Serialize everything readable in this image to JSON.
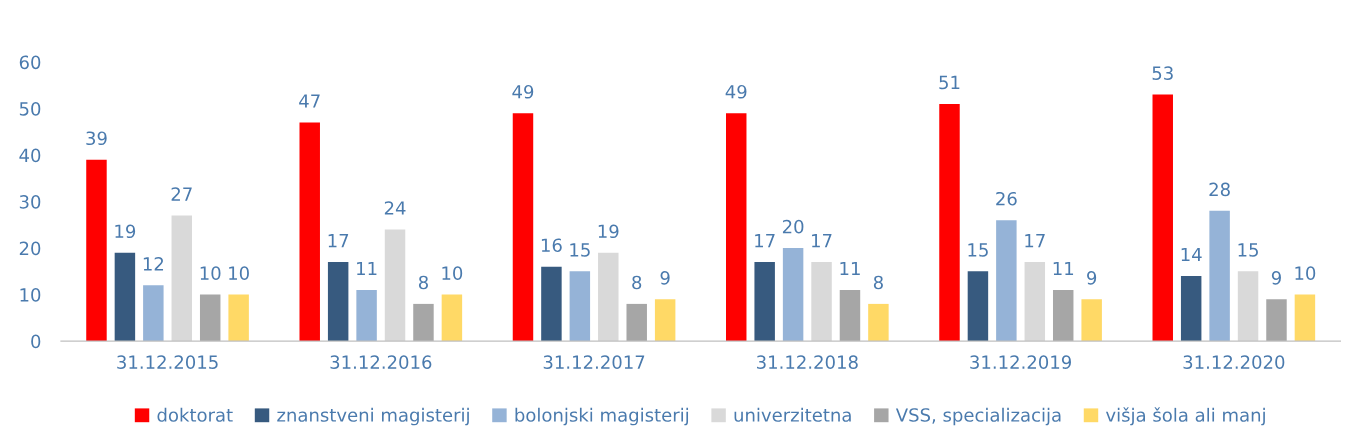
{
  "chart_data": {
    "type": "bar",
    "categories": [
      "31.12.2015",
      "31.12.2016",
      "31.12.2017",
      "31.12.2018",
      "31.12.2019",
      "31.12.2020"
    ],
    "series": [
      {
        "name": "doktorat",
        "color": "#ff0000",
        "values": [
          39,
          47,
          49,
          49,
          51,
          53
        ]
      },
      {
        "name": "znanstveni magisterij",
        "color": "#375a7f",
        "values": [
          19,
          17,
          16,
          17,
          15,
          14
        ]
      },
      {
        "name": "bolonjski magisterij",
        "color": "#95b3d7",
        "values": [
          12,
          11,
          15,
          20,
          26,
          28
        ]
      },
      {
        "name": "univerzitetna",
        "color": "#d9d9d9",
        "values": [
          27,
          24,
          19,
          17,
          17,
          15
        ]
      },
      {
        "name": "VSS, specializacija",
        "color": "#a6a6a6",
        "values": [
          10,
          8,
          8,
          11,
          11,
          9
        ]
      },
      {
        "name": "višja šola ali manj",
        "color": "#ffd966",
        "values": [
          10,
          10,
          9,
          8,
          9,
          10
        ]
      }
    ],
    "ylim": [
      0,
      60
    ],
    "yticks": [
      0,
      10,
      20,
      30,
      40,
      50,
      60
    ],
    "grid": false,
    "legend": "bottom",
    "data_labels": true
  }
}
